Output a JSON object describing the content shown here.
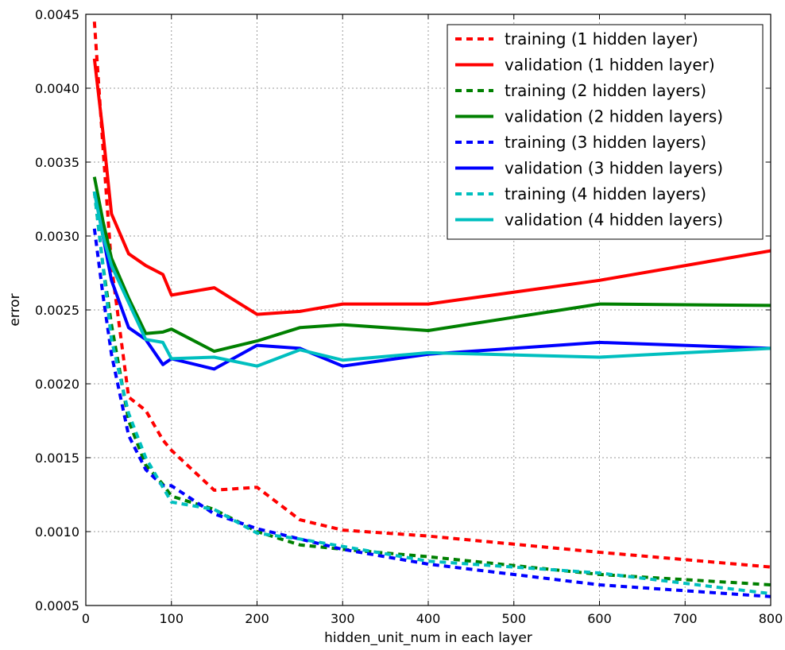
{
  "chart_data": {
    "type": "line",
    "title": "",
    "xlabel": "hidden_unit_num in each layer",
    "ylabel": "error",
    "xlim": [
      0,
      800
    ],
    "ylim": [
      0.0005,
      0.0045
    ],
    "xticks": [
      0,
      100,
      200,
      300,
      400,
      500,
      600,
      700,
      800
    ],
    "yticks": [
      0.0005,
      0.001,
      0.0015,
      0.002,
      0.0025,
      0.003,
      0.0035,
      0.004,
      0.0045
    ],
    "xtick_labels": [
      "0",
      "100",
      "200",
      "300",
      "400",
      "500",
      "600",
      "700",
      "800"
    ],
    "ytick_labels": [
      "0.0005",
      "0.0010",
      "0.0015",
      "0.0020",
      "0.0025",
      "0.0030",
      "0.0035",
      "0.0040",
      "0.0045"
    ],
    "grid": true,
    "legend_position": "top-right",
    "series": [
      {
        "name": "training (1 hidden layer)",
        "color": "#ff0000",
        "style": "dashed",
        "x": [
          10,
          20,
          30,
          50,
          70,
          90,
          100,
          150,
          200,
          250,
          300,
          400,
          600,
          800
        ],
        "y": [
          0.00445,
          0.0036,
          0.0028,
          0.00191,
          0.00182,
          0.00162,
          0.00155,
          0.00128,
          0.0013,
          0.00108,
          0.00101,
          0.00097,
          0.00086,
          0.00076
        ]
      },
      {
        "name": "validation (1 hidden layer)",
        "color": "#ff0000",
        "style": "solid",
        "x": [
          10,
          20,
          30,
          50,
          70,
          90,
          100,
          150,
          200,
          250,
          300,
          400,
          600,
          800
        ],
        "y": [
          0.0042,
          0.0037,
          0.00315,
          0.00288,
          0.0028,
          0.00274,
          0.0026,
          0.00265,
          0.00247,
          0.00249,
          0.00254,
          0.00254,
          0.0027,
          0.0029
        ]
      },
      {
        "name": "training (2 hidden layers)",
        "color": "#008000",
        "style": "dashed",
        "x": [
          10,
          20,
          30,
          50,
          70,
          90,
          100,
          150,
          200,
          250,
          300,
          400,
          600,
          800
        ],
        "y": [
          0.0033,
          0.0028,
          0.0024,
          0.00175,
          0.00145,
          0.00132,
          0.00124,
          0.00115,
          0.001,
          0.00091,
          0.00088,
          0.00083,
          0.00071,
          0.00064
        ]
      },
      {
        "name": "validation (2 hidden layers)",
        "color": "#008000",
        "style": "solid",
        "x": [
          10,
          20,
          30,
          50,
          70,
          90,
          100,
          150,
          200,
          250,
          300,
          400,
          600,
          800
        ],
        "y": [
          0.0034,
          0.0031,
          0.00285,
          0.00258,
          0.00234,
          0.00235,
          0.00237,
          0.00222,
          0.00229,
          0.00238,
          0.0024,
          0.00236,
          0.00254,
          0.00253
        ]
      },
      {
        "name": "training (3 hidden layers)",
        "color": "#0000ff",
        "style": "dashed",
        "x": [
          10,
          20,
          30,
          50,
          70,
          90,
          100,
          150,
          200,
          250,
          300,
          400,
          600,
          800
        ],
        "y": [
          0.00305,
          0.0026,
          0.0022,
          0.00165,
          0.00142,
          0.00131,
          0.00131,
          0.00112,
          0.00102,
          0.00095,
          0.00088,
          0.00078,
          0.00064,
          0.00056
        ]
      },
      {
        "name": "validation (3 hidden layers)",
        "color": "#0000ff",
        "style": "solid",
        "x": [
          10,
          20,
          30,
          50,
          70,
          90,
          100,
          150,
          200,
          250,
          300,
          400,
          600,
          800
        ],
        "y": [
          0.0033,
          0.003,
          0.0027,
          0.00238,
          0.0023,
          0.00213,
          0.00217,
          0.0021,
          0.00226,
          0.00224,
          0.00212,
          0.0022,
          0.00228,
          0.00224
        ]
      },
      {
        "name": "training (4 hidden layers)",
        "color": "#00bfbf",
        "style": "dashed",
        "x": [
          10,
          20,
          30,
          50,
          70,
          90,
          100,
          150,
          200,
          250,
          300,
          400,
          600,
          800
        ],
        "y": [
          0.0033,
          0.0028,
          0.0023,
          0.0018,
          0.0015,
          0.0013,
          0.0012,
          0.00115,
          0.00099,
          0.00095,
          0.0009,
          0.0008,
          0.00072,
          0.00058
        ]
      },
      {
        "name": "validation (4 hidden layers)",
        "color": "#00bfbf",
        "style": "solid",
        "x": [
          10,
          20,
          30,
          50,
          70,
          90,
          100,
          150,
          200,
          250,
          300,
          400,
          600,
          800
        ],
        "y": [
          0.0033,
          0.003,
          0.0028,
          0.00255,
          0.0023,
          0.00228,
          0.00217,
          0.00218,
          0.00212,
          0.00223,
          0.00216,
          0.00221,
          0.00218,
          0.00224
        ]
      }
    ]
  }
}
